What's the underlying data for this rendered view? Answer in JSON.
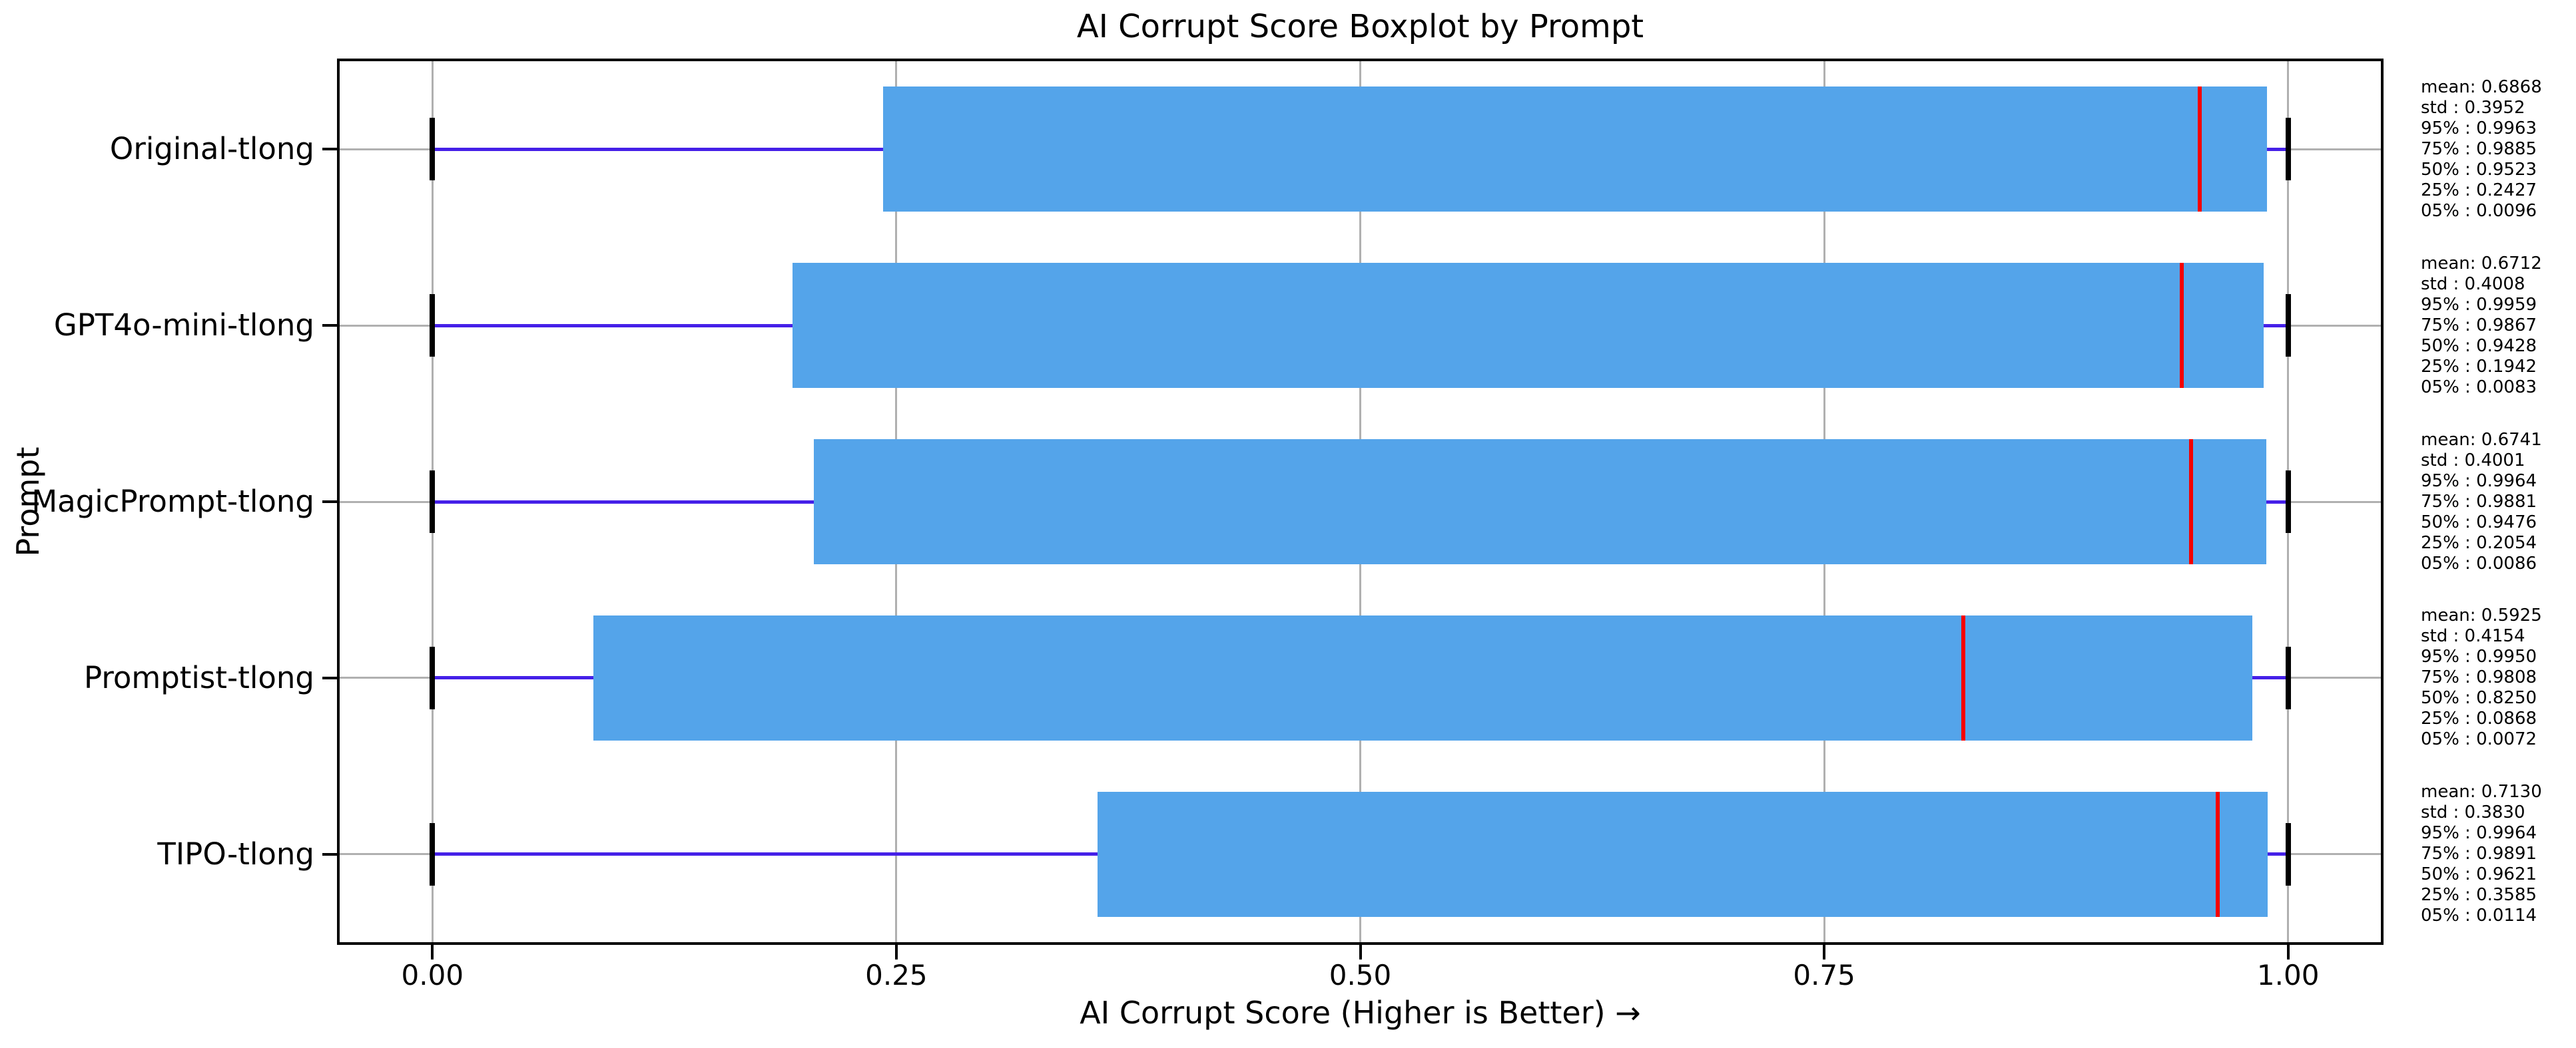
{
  "figure": {
    "title": "AI Corrupt Score Boxplot by Prompt",
    "xlabel": "AI Corrupt Score (Higher is Better) →",
    "ylabel": "Prompt",
    "background": "#ffffff"
  },
  "chart_data": {
    "type": "boxplot",
    "orientation": "horizontal",
    "title": "AI Corrupt Score Boxplot by Prompt",
    "xlabel": "AI Corrupt Score (Higher is Better) →",
    "ylabel": "Prompt",
    "xlim": [
      -0.05,
      1.05
    ],
    "grid": true,
    "categories": [
      "Original-tlong",
      "GPT4o-mini-tlong",
      "MagicPrompt-tlong",
      "Promptist-tlong",
      "TIPO-tlong"
    ],
    "xticks": [
      {
        "value": 0.0,
        "label": "0.00"
      },
      {
        "value": 0.25,
        "label": "0.25"
      },
      {
        "value": 0.5,
        "label": "0.50"
      },
      {
        "value": 0.75,
        "label": "0.75"
      },
      {
        "value": 1.0,
        "label": "1.00"
      }
    ],
    "series": [
      {
        "name": "Original-tlong",
        "mean": 0.6868,
        "std": 0.3952,
        "p95": 0.9963,
        "p75": 0.9885,
        "p50": 0.9523,
        "p25": 0.2427,
        "p05": 0.0096,
        "whisker_low": 0.0,
        "whisker_high": 1.0
      },
      {
        "name": "GPT4o-mini-tlong",
        "mean": 0.6712,
        "std": 0.4008,
        "p95": 0.9959,
        "p75": 0.9867,
        "p50": 0.9428,
        "p25": 0.1942,
        "p05": 0.0083,
        "whisker_low": 0.0,
        "whisker_high": 1.0
      },
      {
        "name": "MagicPrompt-tlong",
        "mean": 0.6741,
        "std": 0.4001,
        "p95": 0.9964,
        "p75": 0.9881,
        "p50": 0.9476,
        "p25": 0.2054,
        "p05": 0.0086,
        "whisker_low": 0.0,
        "whisker_high": 1.0
      },
      {
        "name": "Promptist-tlong",
        "mean": 0.5925,
        "std": 0.4154,
        "p95": 0.995,
        "p75": 0.9808,
        "p50": 0.825,
        "p25": 0.0868,
        "p05": 0.0072,
        "whisker_low": 0.0,
        "whisker_high": 1.0
      },
      {
        "name": "TIPO-tlong",
        "mean": 0.713,
        "std": 0.383,
        "p95": 0.9964,
        "p75": 0.9891,
        "p50": 0.9621,
        "p25": 0.3585,
        "p05": 0.0114,
        "whisker_low": 0.0,
        "whisker_high": 1.0
      }
    ]
  },
  "stats_order": [
    "mean",
    "std",
    "p95",
    "p75",
    "p50",
    "p25",
    "p05"
  ],
  "stats_label_formats": {
    "mean": "mean: ",
    "std": "std : ",
    "p95": "95% : ",
    "p75": "75% : ",
    "p50": "50% : ",
    "p25": "25% : ",
    "p05": "05% : "
  },
  "colors": {
    "box": "#54a4ea",
    "median": "#f40000",
    "whisker": "#4520e8",
    "cap": "#000000",
    "grid": "#b0b0b0",
    "spine": "#000000",
    "text": "#000000"
  }
}
